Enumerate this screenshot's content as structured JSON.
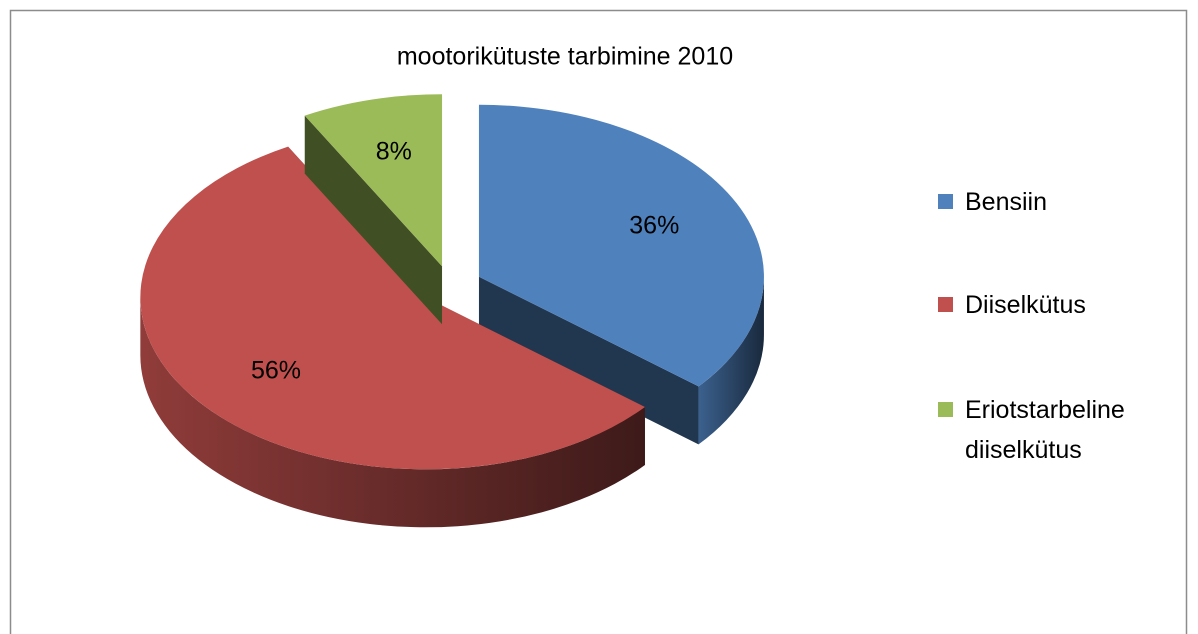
{
  "chart_data": {
    "type": "pie",
    "title": "mootorikütuste tarbimine 2010",
    "categories": [
      "Bensiin",
      "Diiselkütus",
      "Eriotstarbeline diiselkütus"
    ],
    "values": [
      36,
      56,
      8
    ],
    "value_labels": [
      "36%",
      "56%",
      "8%"
    ],
    "colors": [
      "#4f81bd",
      "#c0504d",
      "#9bbb59"
    ],
    "legend": "right"
  }
}
